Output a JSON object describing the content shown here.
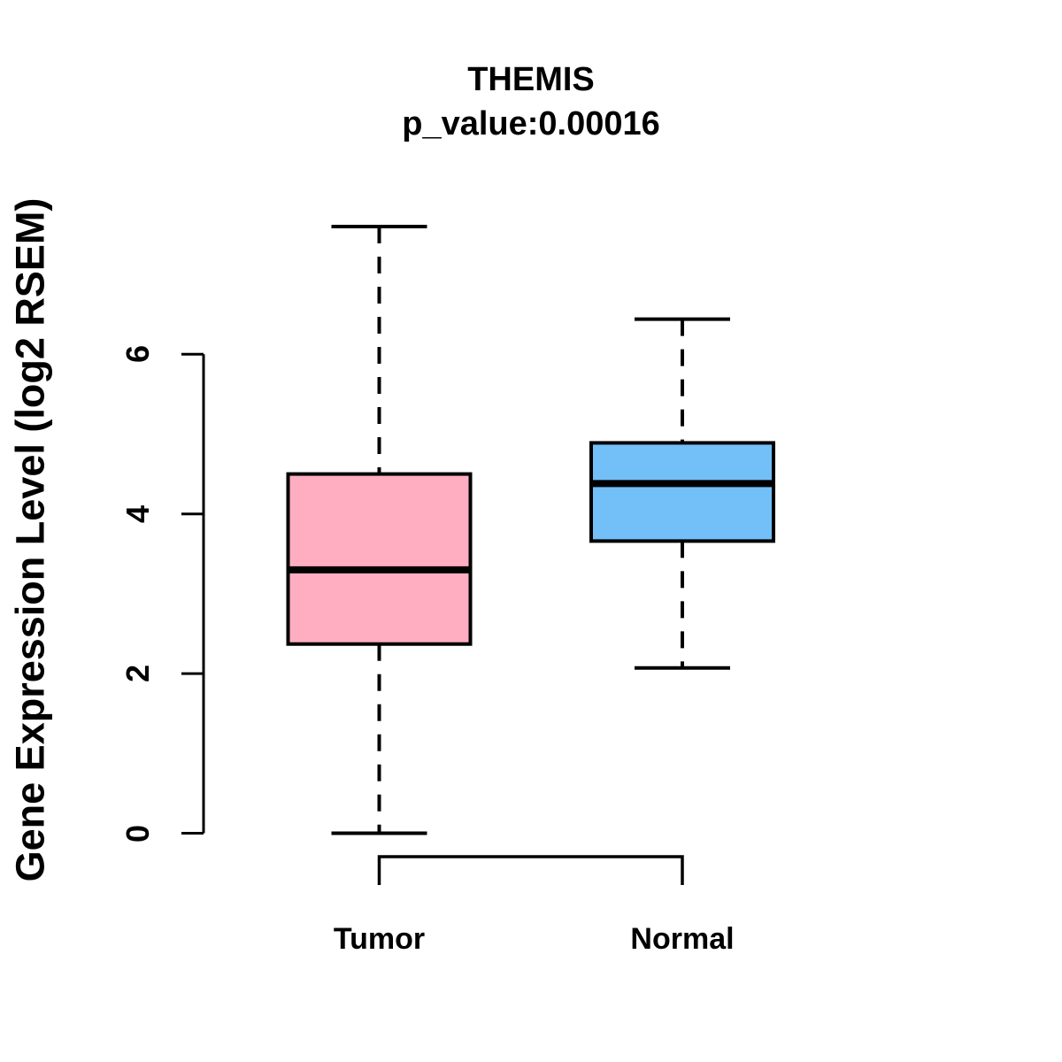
{
  "chart_data": {
    "type": "boxplot",
    "title": "THEMIS",
    "subtitle": "p_value:0.00016",
    "ylabel": "Gene Expression Level (log2 RSEM)",
    "categories": [
      "Tumor",
      "Normal"
    ],
    "yticks": [
      "0",
      "2",
      "4",
      "6"
    ],
    "ylim": [
      0,
      7.8
    ],
    "grid": "off",
    "series": [
      {
        "name": "Tumor",
        "fill_color": "#FFAEC1",
        "border_color": "#000000",
        "whisker_low": 0.0,
        "q1": 2.37,
        "median": 3.3,
        "q3": 4.5,
        "whisker_high": 7.6
      },
      {
        "name": "Normal",
        "fill_color": "#73BFF7",
        "border_color": "#000000",
        "whisker_low": 2.07,
        "q1": 3.66,
        "median": 4.38,
        "q3": 4.89,
        "whisker_high": 6.44
      }
    ]
  }
}
